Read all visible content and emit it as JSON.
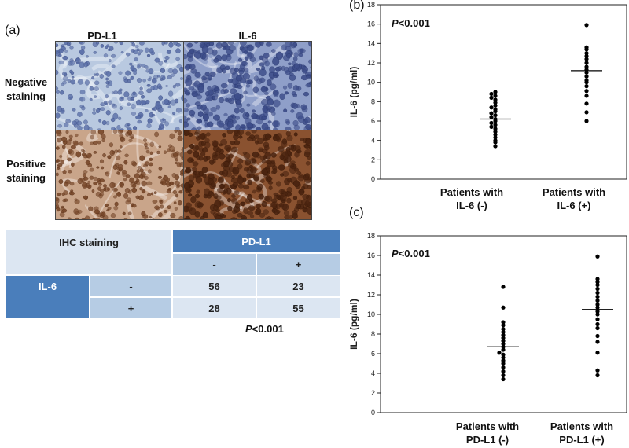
{
  "panel_a": {
    "label": "(a)",
    "col_headers": [
      "PD-L1",
      "IL-6"
    ],
    "row_labels": [
      "Negative staining",
      "Positive staining"
    ]
  },
  "table": {
    "corner": "IHC staining",
    "col_group": "PD-L1",
    "col_minus": "-",
    "col_plus": "+",
    "row_group": "IL-6",
    "row_minus": "-",
    "row_plus": "+",
    "cells": [
      [
        "56",
        "23"
      ],
      [
        "28",
        "55"
      ]
    ],
    "p_italic": "P",
    "p_rest": "<0.001"
  },
  "colors": {
    "header_blue": "#4a7ebb",
    "mid_blue": "#b6cce4",
    "light_blue": "#dce6f2",
    "negative_stain": "#9fb4d6",
    "positive_stain": "#a0693f"
  },
  "chart_data": [
    {
      "panel": "(b)",
      "type": "scatter",
      "ylabel": "IL-6 (pg/ml)",
      "ylim": [
        0,
        18
      ],
      "yticks": [
        "0",
        "2",
        "4",
        "6",
        "8",
        "10",
        "12",
        "14",
        "16",
        "18"
      ],
      "annotation_italic": "P",
      "annotation_rest": "<0.001",
      "categories": [
        "Patients with IL-6 (-)",
        "Patients with IL-6 (+)"
      ],
      "category_lines": [
        [
          "Patients with",
          "IL-6 (-)"
        ],
        [
          "Patients with",
          "IL-6 (+)"
        ]
      ],
      "means": [
        6.2,
        11.2
      ],
      "series": [
        {
          "values": [
            3.4,
            3.8,
            4.0,
            4.3,
            4.6,
            4.9,
            5.2,
            5.4,
            5.6,
            5.8,
            6.0,
            6.2,
            6.4,
            6.6,
            6.8,
            7.0,
            7.2,
            7.4,
            7.6,
            7.9,
            8.2,
            8.4,
            8.6,
            8.8,
            9.0
          ]
        },
        {
          "values": [
            6.0,
            6.9,
            7.8,
            8.6,
            9.1,
            9.6,
            10.0,
            10.2,
            10.6,
            11.0,
            11.3,
            11.6,
            12.0,
            12.4,
            12.7,
            13.0,
            13.4,
            13.6,
            15.9
          ]
        }
      ]
    },
    {
      "panel": "(c)",
      "type": "scatter",
      "ylabel": "IL-6 (pg/ml)",
      "ylim": [
        0,
        18
      ],
      "yticks": [
        "0",
        "2",
        "4",
        "6",
        "8",
        "10",
        "12",
        "14",
        "16",
        "18"
      ],
      "annotation_italic": "P",
      "annotation_rest": "<0.001",
      "categories": [
        "Patients with PD-L1 (-)",
        "Patients with PD-L1 (+)"
      ],
      "category_lines": [
        [
          "Patients with",
          "PD-L1 (-)"
        ],
        [
          "Patients with",
          "PD-L1 (+)"
        ]
      ],
      "means": [
        6.7,
        10.5
      ],
      "series": [
        {
          "values": [
            3.4,
            3.8,
            4.2,
            4.6,
            5.0,
            5.3,
            5.6,
            5.9,
            6.1,
            6.4,
            6.7,
            7.0,
            7.3,
            7.6,
            7.9,
            8.2,
            8.5,
            8.9,
            9.2,
            10.7,
            12.8
          ]
        },
        {
          "values": [
            3.8,
            4.3,
            6.1,
            7.2,
            7.8,
            8.6,
            9.0,
            9.5,
            10.0,
            10.3,
            10.7,
            11.0,
            11.4,
            11.8,
            12.2,
            12.6,
            13.0,
            13.3,
            13.6,
            15.9
          ]
        }
      ]
    }
  ]
}
